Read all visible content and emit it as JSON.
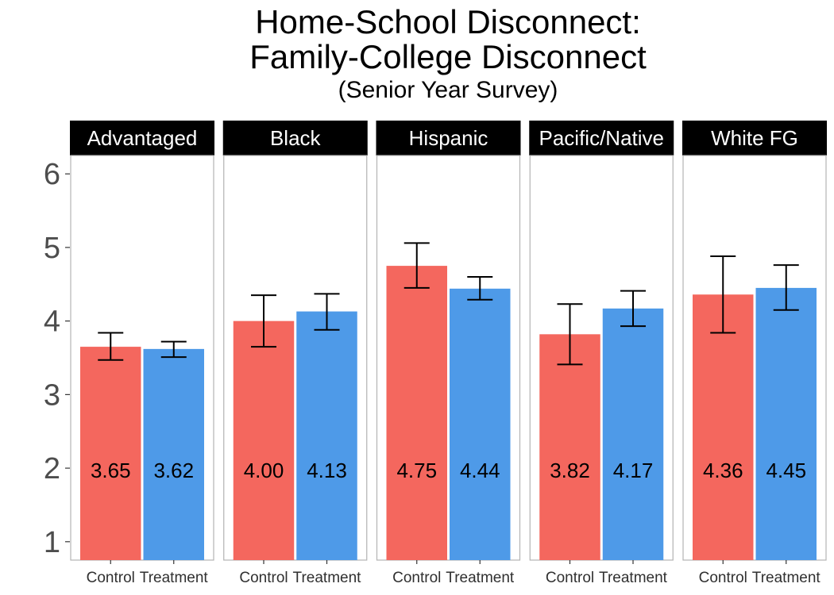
{
  "chart_data": {
    "type": "bar",
    "title_lines": [
      "Home-School Disconnect:",
      "Family-College Disconnect"
    ],
    "subtitle": "(Senior Year Survey)",
    "xlabel": "",
    "ylabel": "",
    "ylim": [
      0.75,
      6.25
    ],
    "yticks": [
      "1",
      "2",
      "3",
      "4",
      "5",
      "6"
    ],
    "categories": [
      "Control",
      "Treatment"
    ],
    "colors": {
      "Control": "#f4675e",
      "Treatment": "#4e9ae8"
    },
    "grid": false,
    "legend": "none",
    "facets": [
      {
        "name": "Advantaged",
        "bars": [
          {
            "group": "Control",
            "value": 3.65,
            "label": "3.65",
            "err_low": 3.47,
            "err_high": 3.84
          },
          {
            "group": "Treatment",
            "value": 3.62,
            "label": "3.62",
            "err_low": 3.51,
            "err_high": 3.72
          }
        ]
      },
      {
        "name": "Black",
        "bars": [
          {
            "group": "Control",
            "value": 4.0,
            "label": "4.00",
            "err_low": 3.65,
            "err_high": 4.35
          },
          {
            "group": "Treatment",
            "value": 4.13,
            "label": "4.13",
            "err_low": 3.88,
            "err_high": 4.37
          }
        ]
      },
      {
        "name": "Hispanic",
        "bars": [
          {
            "group": "Control",
            "value": 4.75,
            "label": "4.75",
            "err_low": 4.45,
            "err_high": 5.06
          },
          {
            "group": "Treatment",
            "value": 4.44,
            "label": "4.44",
            "err_low": 4.29,
            "err_high": 4.6
          }
        ]
      },
      {
        "name": "Pacific/Native",
        "bars": [
          {
            "group": "Control",
            "value": 3.82,
            "label": "3.82",
            "err_low": 3.41,
            "err_high": 4.23
          },
          {
            "group": "Treatment",
            "value": 4.17,
            "label": "4.17",
            "err_low": 3.93,
            "err_high": 4.41
          }
        ]
      },
      {
        "name": "White FG",
        "bars": [
          {
            "group": "Control",
            "value": 4.36,
            "label": "4.36",
            "err_low": 3.84,
            "err_high": 4.88
          },
          {
            "group": "Treatment",
            "value": 4.45,
            "label": "4.45",
            "err_low": 4.15,
            "err_high": 4.76
          }
        ]
      }
    ]
  }
}
